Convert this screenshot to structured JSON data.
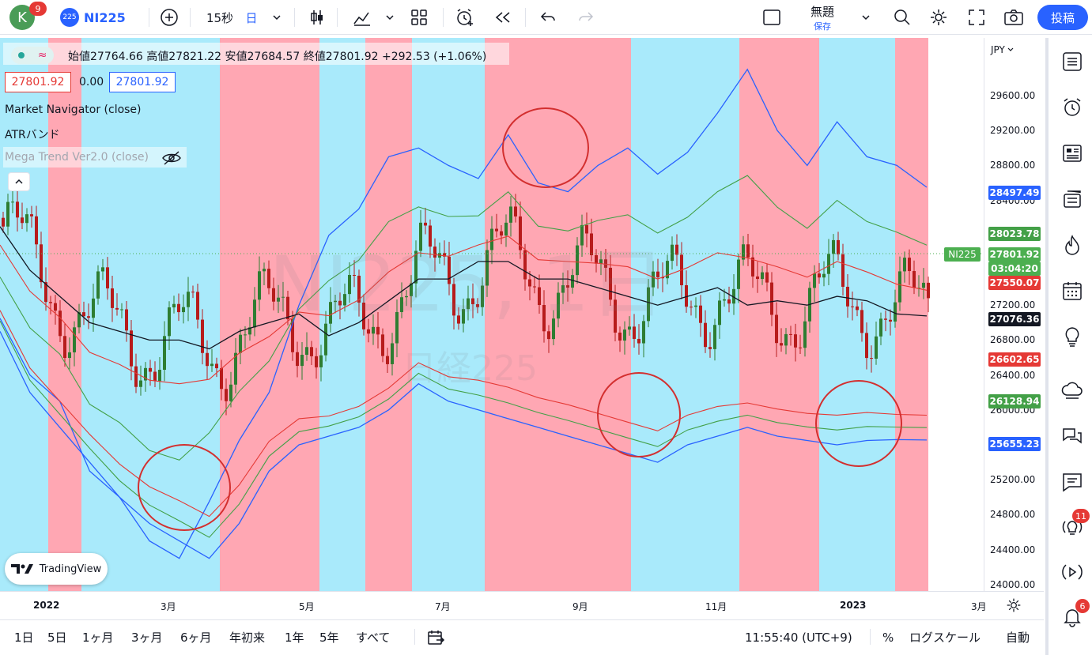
{
  "topbar": {
    "avatar_letter": "K",
    "avatar_badge": "9",
    "symbol_logo": "225",
    "symbol": "NI225",
    "interval": "15秒",
    "interval_day": "日",
    "layout_name": "無題",
    "layout_status": "保存",
    "post_label": "投稿"
  },
  "legend": {
    "ohlc": "始値27764.66 高値27821.22 安値27684.57 終値27801.92 +292.53 (+1.06%)",
    "bid": "27801.92",
    "spread": "0.00",
    "ask": "27801.92",
    "indicators": [
      "Market Navigator (close)",
      "ATRバンド",
      "Mega Trend Ver2.0 (close)"
    ]
  },
  "watermark": {
    "main": "NI225, 1日",
    "sub": "日経225"
  },
  "price_scale": {
    "currency": "JPY",
    "ticks": [
      "29600.00",
      "29200.00",
      "28800.00",
      "28400.00",
      "28000.00",
      "27600.00",
      "27200.00",
      "26800.00",
      "26400.00",
      "26000.00",
      "25600.00",
      "25200.00",
      "24800.00",
      "24400.00",
      "24000.00"
    ],
    "labels": [
      {
        "text": "28497.49",
        "color": "#2962ff"
      },
      {
        "text": "28023.78",
        "color": "#43a047"
      },
      {
        "text": "27801.92",
        "color": "#4caf50"
      },
      {
        "text": "03:04:20",
        "color": "#4caf50"
      },
      {
        "text": "27550.07",
        "color": "#e53935"
      },
      {
        "text": "27076.36",
        "color": "#131722"
      },
      {
        "text": "26602.65",
        "color": "#e53935"
      },
      {
        "text": "26128.94",
        "color": "#43a047"
      },
      {
        "text": "25655.23",
        "color": "#2962ff"
      }
    ],
    "symbol_tag": "NI225"
  },
  "time_axis": [
    "2022",
    "3月",
    "5月",
    "7月",
    "9月",
    "11月",
    "2023",
    "3月"
  ],
  "bottombar": {
    "ranges": [
      "1日",
      "5日",
      "1ヶ月",
      "3ヶ月",
      "6ヶ月",
      "年初来",
      "1年",
      "5年",
      "すべて"
    ],
    "clock": "11:55:40 (UTC+9)",
    "percent": "%",
    "log": "ログスケール",
    "auto": "自動"
  },
  "tv_logo": "TradingView",
  "right_toolbar": {
    "badge_ideas": "11",
    "badge_alerts": "6"
  },
  "colors": {
    "pink_band": "#ffa7b3",
    "cyan_band": "#a9eafb",
    "upper": "#2962ff",
    "mid": "#43a047",
    "inner": "#e53935",
    "center": "#131722"
  },
  "chart_data": {
    "type": "line",
    "title": "NI225, 1日",
    "x_range": [
      "2021-12-01",
      "2023-03-15"
    ],
    "ylim": [
      24000,
      29900
    ],
    "series": [
      {
        "name": "Upper ATR band",
        "values": [
          27050,
          26400,
          26100,
          25300,
          25000,
          24500,
          24300,
          24950,
          25650,
          26200,
          27200,
          28000,
          28300,
          28900,
          29000,
          28800,
          28650,
          29150,
          28600,
          28500,
          28800,
          29000,
          28700,
          28950,
          29400,
          29900,
          29200,
          28800,
          29300,
          28900,
          28800,
          28550
        ]
      },
      {
        "name": "Center line",
        "values": [
          28100,
          27600,
          27300,
          27000,
          26900,
          26800,
          26800,
          26700,
          26900,
          27000,
          27100,
          26850,
          27000,
          27250,
          27500,
          27500,
          27700,
          27700,
          27500,
          27500,
          27400,
          27300,
          27200,
          27300,
          27400,
          27200,
          27250,
          27200,
          27300,
          27250,
          27100,
          27076
        ]
      },
      {
        "name": "Lower ATR band",
        "values": [
          26900,
          26200,
          25800,
          25400,
          25000,
          24700,
          24500,
          24300,
          24700,
          25300,
          25600,
          25700,
          25800,
          26000,
          26300,
          26100,
          26000,
          25900,
          25800,
          25700,
          25600,
          25500,
          25400,
          25600,
          25700,
          25800,
          25700,
          25650,
          25600,
          25650,
          25660,
          25655
        ]
      }
    ]
  }
}
